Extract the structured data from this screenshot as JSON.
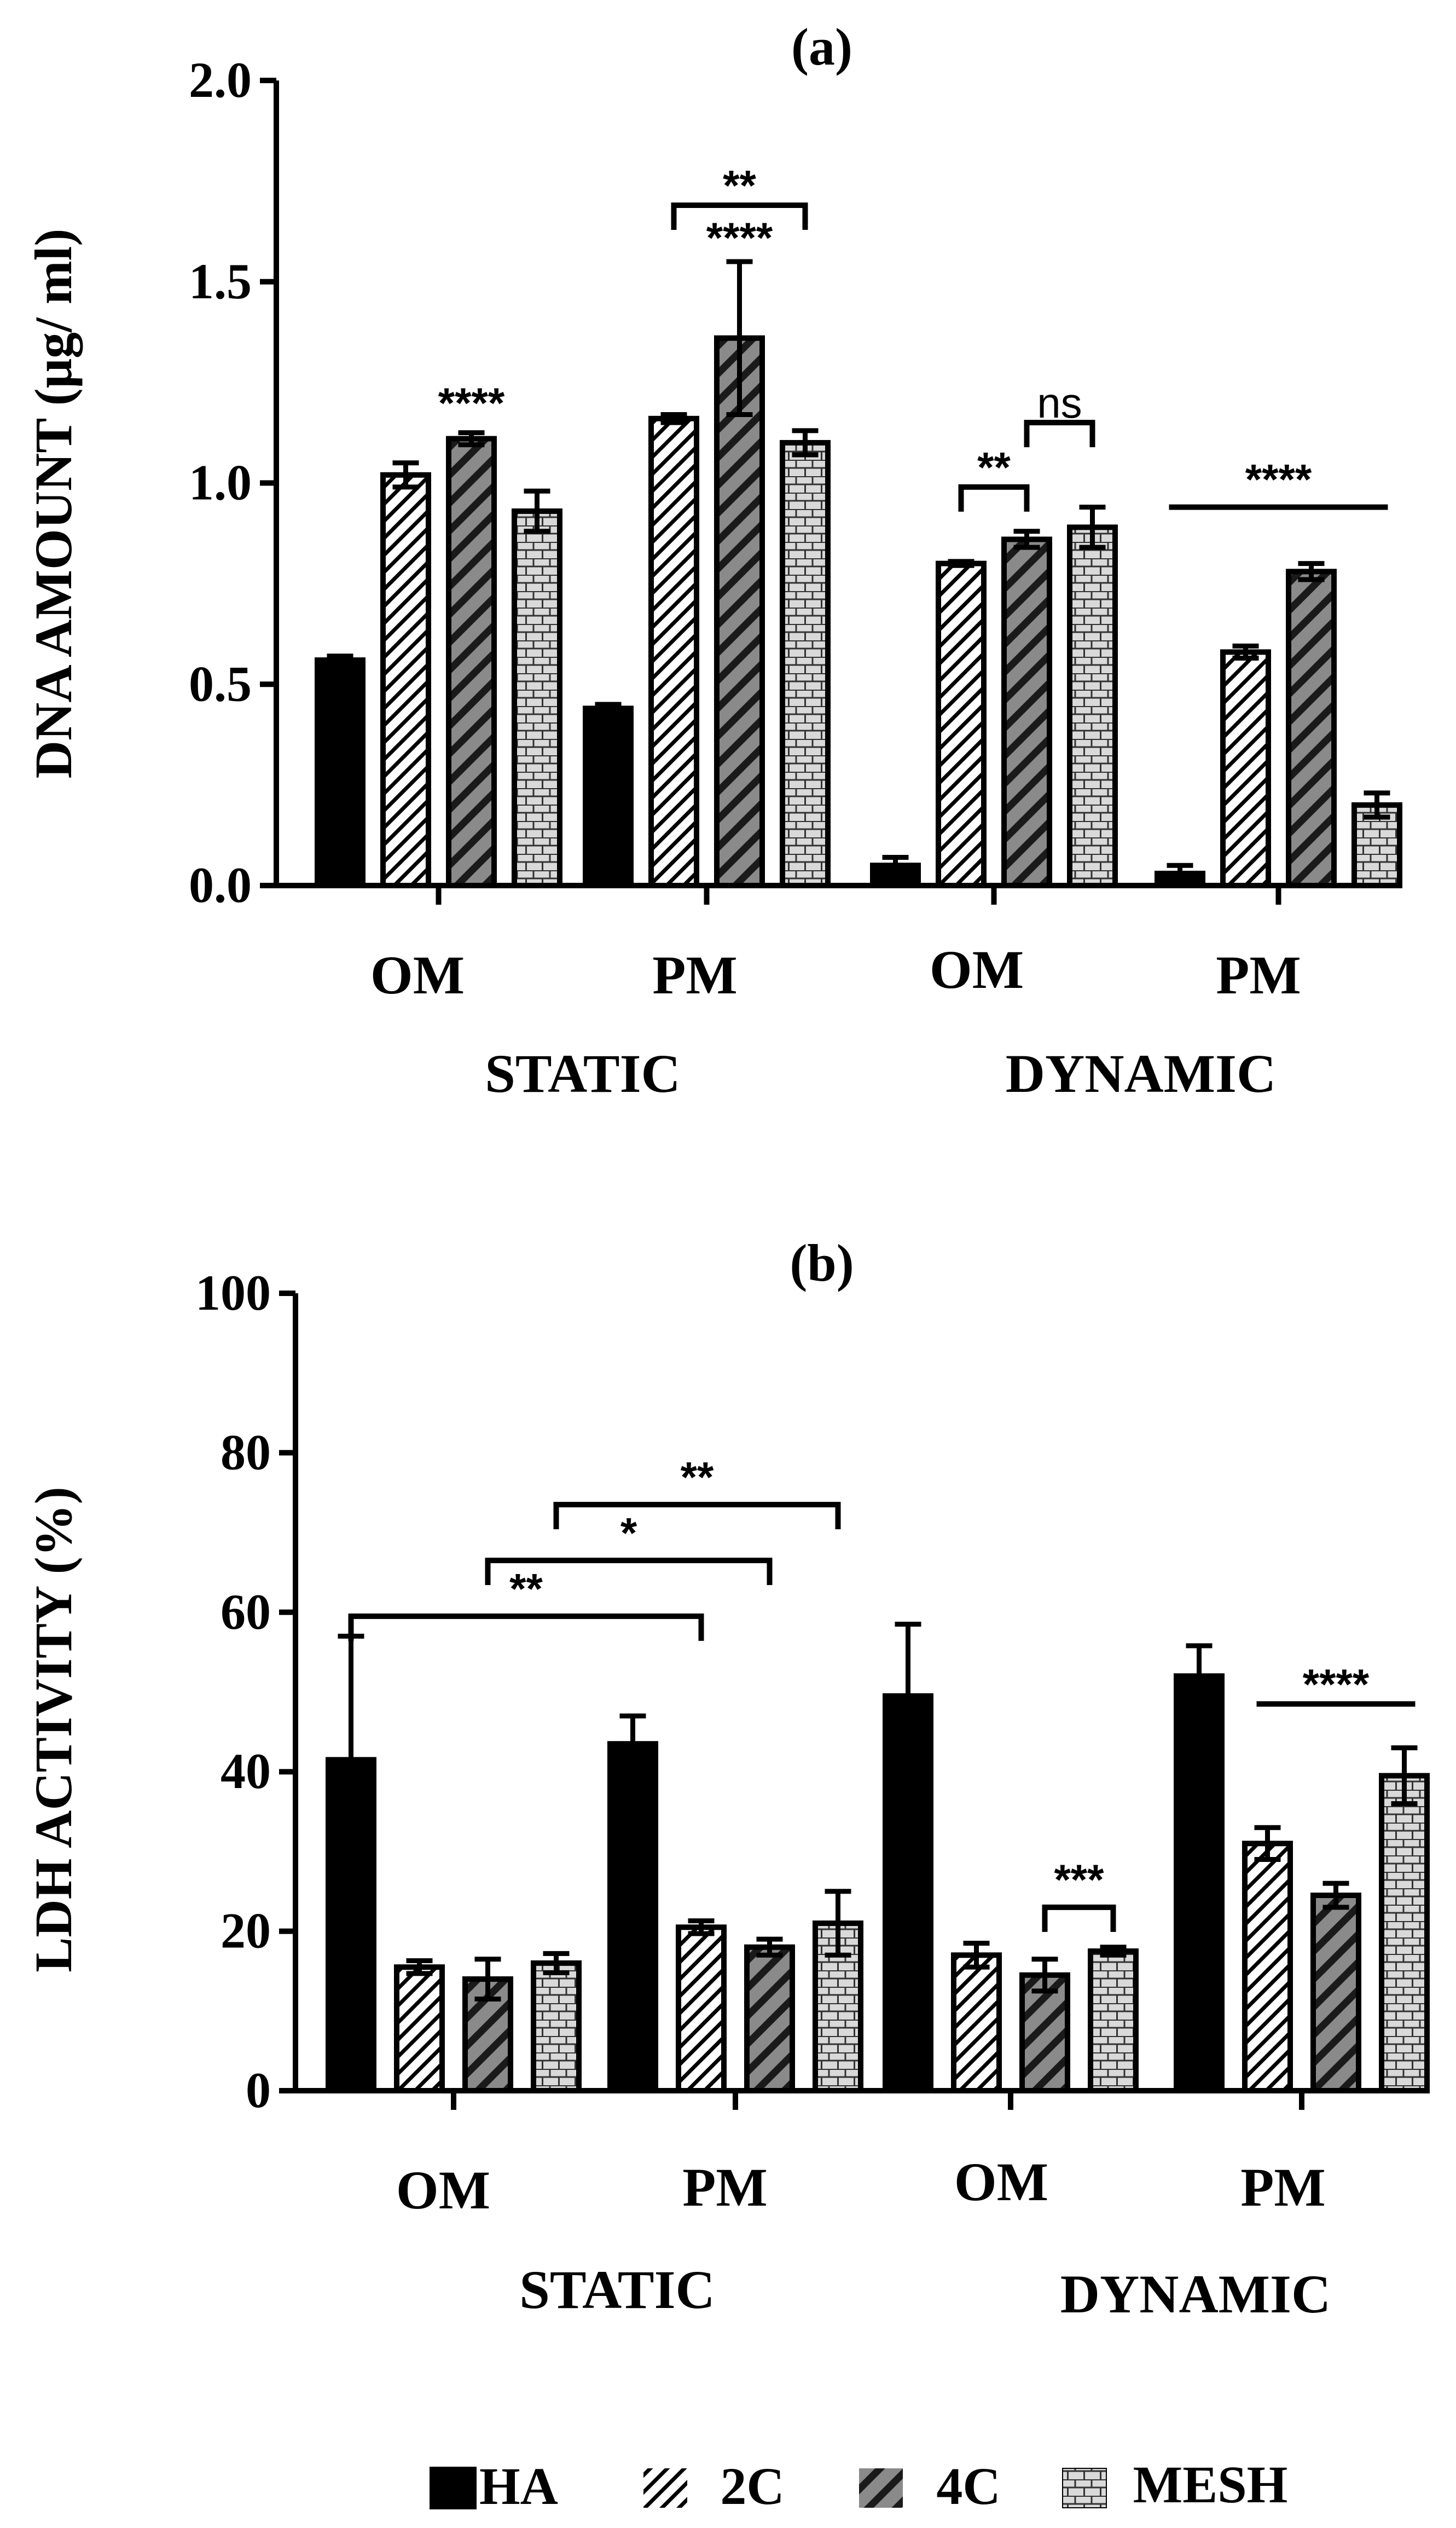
{
  "legend": [
    {
      "key": "HA",
      "label": "HA",
      "pattern": "solid"
    },
    {
      "key": "2C",
      "label": "2C",
      "pattern": "diag-fine"
    },
    {
      "key": "4C",
      "label": "4C",
      "pattern": "diag-gray"
    },
    {
      "key": "MESH",
      "label": "MESH",
      "pattern": "brick"
    }
  ],
  "colors": {
    "bar_stroke": "#000000",
    "solid": "#000000",
    "gray_fill": "#8a8a8a",
    "brick_fill": "#d9d9d9",
    "background": "#ffffff"
  },
  "chart_data": [
    {
      "type": "bar",
      "title": "(a)",
      "xlabel": "",
      "ylabel": "DNA AMOUNT (μg/ ml)",
      "ylim": [
        0,
        2.0
      ],
      "yticks": [
        "0.0",
        "0.5",
        "1.0",
        "1.5",
        "2.0"
      ],
      "categories": [
        "OM",
        "PM",
        "OM",
        "PM"
      ],
      "groups": [
        "STATIC",
        "DYNAMIC"
      ],
      "series": [
        {
          "name": "HA",
          "values": [
            0.56,
            0.44,
            0.05,
            0.03
          ],
          "errors": [
            0.01,
            0.01,
            0.02,
            0.02
          ]
        },
        {
          "name": "2C",
          "values": [
            1.02,
            1.16,
            0.8,
            0.58
          ],
          "errors": [
            0.03,
            0.01,
            0.005,
            0.015
          ]
        },
        {
          "name": "4C",
          "values": [
            1.11,
            1.36,
            0.86,
            0.78
          ],
          "errors": [
            0.015,
            0.19,
            0.02,
            0.02
          ]
        },
        {
          "name": "MESH",
          "values": [
            0.93,
            1.1,
            0.89,
            0.2
          ],
          "errors": [
            0.05,
            0.03,
            0.05,
            0.03
          ]
        }
      ],
      "annotations": [
        {
          "text": "****",
          "kind": "label",
          "cat": 0,
          "series": 2,
          "y": 1.19
        },
        {
          "text": "**",
          "kind": "bracket",
          "from": [
            1,
            1
          ],
          "to": [
            1,
            3
          ],
          "y": 1.69,
          "label_y": 1.73
        },
        {
          "text": "****",
          "kind": "label",
          "cat": 1,
          "series": 2,
          "y": 1.6
        },
        {
          "text": "**",
          "kind": "bracket",
          "from": [
            2,
            1
          ],
          "to": [
            2,
            2
          ],
          "y": 0.99,
          "label_y": 1.03
        },
        {
          "text": "ns",
          "kind": "bracket",
          "from": [
            2,
            2
          ],
          "to": [
            2,
            3
          ],
          "y": 1.15,
          "label_y": 1.19
        },
        {
          "text": "****",
          "kind": "line",
          "from": [
            3,
            0
          ],
          "to": [
            3,
            3
          ],
          "y": 0.94,
          "label_y": 1.0
        }
      ]
    },
    {
      "type": "bar",
      "title": "(b)",
      "xlabel": "",
      "ylabel": "LDH ACTIVITY (%)",
      "ylim": [
        0,
        100
      ],
      "yticks": [
        "0",
        "20",
        "40",
        "60",
        "80",
        "100"
      ],
      "categories": [
        "OM",
        "PM",
        "OM",
        "PM"
      ],
      "groups": [
        "STATIC",
        "DYNAMIC"
      ],
      "series": [
        {
          "name": "HA",
          "values": [
            41.5,
            43.5,
            49.5,
            52
          ],
          "errors": [
            15.5,
            3.5,
            9,
            3.8
          ]
        },
        {
          "name": "2C",
          "values": [
            15.5,
            20.5,
            17,
            31
          ],
          "errors": [
            0.8,
            0.8,
            1.5,
            2
          ]
        },
        {
          "name": "4C",
          "values": [
            14,
            18,
            14.5,
            24.5
          ],
          "errors": [
            2.5,
            1,
            2,
            1.5
          ]
        },
        {
          "name": "MESH",
          "values": [
            16,
            21,
            17.5,
            39.5
          ],
          "errors": [
            1.2,
            4,
            0.5,
            3.5
          ]
        }
      ],
      "annotations": [
        {
          "text": "**",
          "kind": "bracket",
          "from": [
            0,
            0
          ],
          "to": [
            1,
            1
          ],
          "y": 59.5,
          "label_y": 62.5
        },
        {
          "text": "*",
          "kind": "bracket",
          "from": [
            0,
            2
          ],
          "to": [
            1,
            2
          ],
          "y": 66.5,
          "label_y": 69.5
        },
        {
          "text": "**",
          "kind": "bracket",
          "from": [
            0,
            3
          ],
          "to": [
            1,
            3
          ],
          "y": 73.5,
          "label_y": 76.5
        },
        {
          "text": "***",
          "kind": "bracket",
          "from": [
            2,
            2
          ],
          "to": [
            2,
            3
          ],
          "y": 23,
          "label_y": 26
        },
        {
          "text": "****",
          "kind": "line",
          "from": [
            3,
            1
          ],
          "to": [
            3,
            3
          ],
          "y": 48.5,
          "label_y": 50.5
        }
      ]
    }
  ]
}
